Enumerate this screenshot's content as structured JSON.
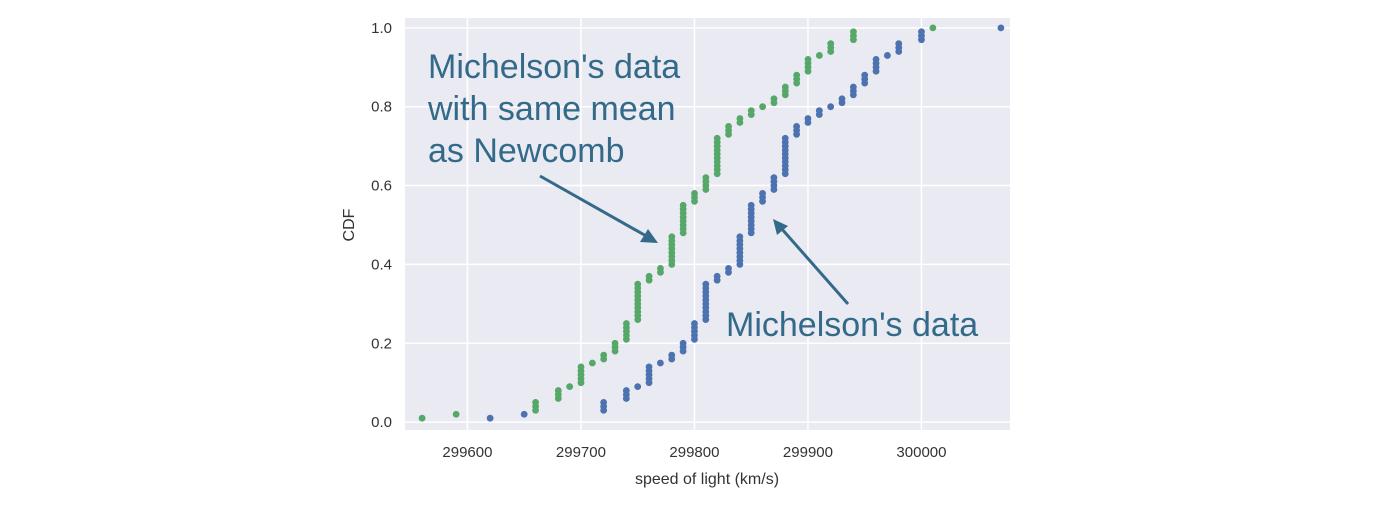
{
  "chart_data": {
    "type": "scatter",
    "subtype": "ecdf",
    "xlabel": "speed of light (km/s)",
    "ylabel": "CDF",
    "xlim": [
      299545,
      300078
    ],
    "ylim": [
      -0.02,
      1.025
    ],
    "xticks": [
      299600,
      299700,
      299800,
      299900,
      300000
    ],
    "xtick_labels": [
      "299600",
      "299700",
      "299800",
      "299900",
      "300000"
    ],
    "yticks": [
      0.0,
      0.2,
      0.4,
      0.6,
      0.8,
      1.0
    ],
    "ytick_labels": [
      "0.0",
      "0.2",
      "0.4",
      "0.6",
      "0.8",
      "1.0"
    ],
    "grid": true,
    "series": [
      {
        "name": "Michelson's data",
        "color": "#4c72b0",
        "shift": 0,
        "values": [
          299850,
          299740,
          299900,
          300070,
          299930,
          299850,
          299950,
          299980,
          299980,
          299880,
          300000,
          299980,
          299930,
          299650,
          299760,
          299810,
          300000,
          300000,
          299960,
          299960,
          299960,
          299940,
          299960,
          299940,
          299880,
          299800,
          299850,
          299880,
          299900,
          299840,
          299830,
          299790,
          299810,
          299880,
          299880,
          299830,
          299800,
          299790,
          299760,
          299800,
          299880,
          299880,
          299880,
          299860,
          299720,
          299720,
          299620,
          299860,
          299970,
          299950,
          299880,
          299910,
          299850,
          299870,
          299840,
          299840,
          299850,
          299840,
          299840,
          299840,
          299890,
          299810,
          299810,
          299820,
          299800,
          299770,
          299760,
          299740,
          299750,
          299760,
          299910,
          299920,
          299890,
          299860,
          299880,
          299720,
          299840,
          299850,
          299850,
          299780,
          299890,
          299840,
          299780,
          299810,
          299760,
          299810,
          299790,
          299810,
          299820,
          299850,
          299870,
          299870,
          299810,
          299740,
          299810,
          299940,
          299950,
          299800,
          299810,
          299870
        ]
      },
      {
        "name": "Michelson's data with same mean as Newcomb",
        "color": "#55a868",
        "shift": -59.94,
        "values_note": "same measurements shifted by shift"
      }
    ],
    "annotations": [
      {
        "lines": [
          "Michelson's data",
          "with same mean",
          "as Newcomb"
        ]
      },
      {
        "lines": [
          "Michelson's data"
        ]
      }
    ],
    "annotation_color": "#336a8a",
    "background": "#eaeaf2"
  }
}
